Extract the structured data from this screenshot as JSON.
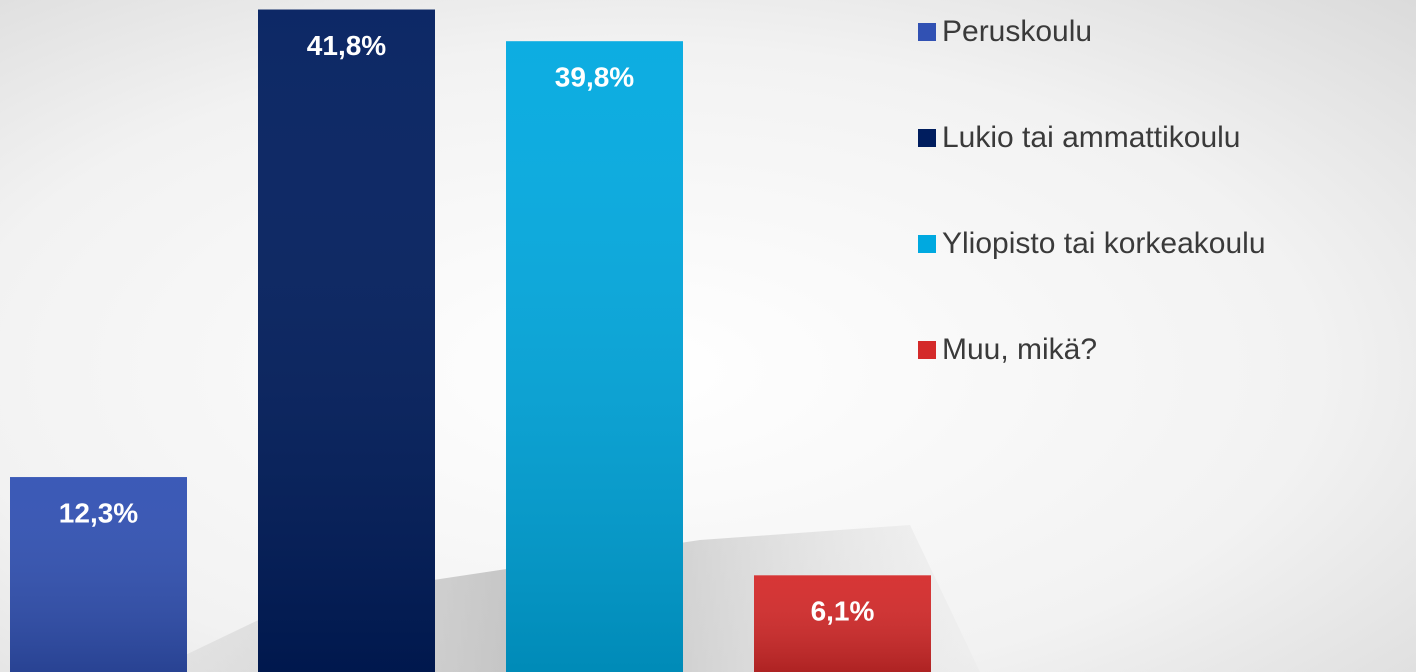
{
  "chart_data": {
    "type": "bar",
    "series": [
      {
        "name": "Peruskoulu",
        "color": "#3151b3",
        "values": [
          12.3
        ],
        "value_labels": [
          "12,3%"
        ]
      },
      {
        "name": "Lukio tai ammattikoulu",
        "color": "#001d5e",
        "values": [
          41.8
        ],
        "value_labels": [
          "41,8%"
        ]
      },
      {
        "name": "Yliopisto tai korkeakoulu",
        "color": "#00a9e0",
        "values": [
          39.8
        ],
        "value_labels": [
          "39,8%"
        ]
      },
      {
        "name": "Muu, mikä?",
        "color": "#d42a2a",
        "values": [
          6.1
        ],
        "value_labels": [
          "6,1%"
        ]
      }
    ],
    "ylim": [
      0,
      42.4
    ]
  }
}
